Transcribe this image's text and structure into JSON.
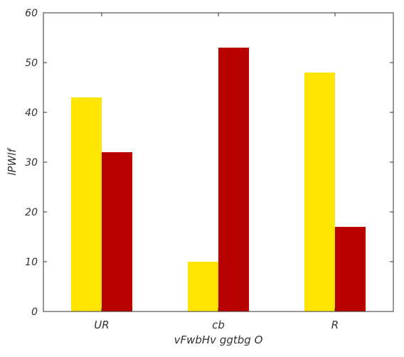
{
  "chart_data": {
    "type": "bar",
    "categories": [
      "UR",
      "cb",
      "R"
    ],
    "series": [
      {
        "values": [
          43,
          10,
          48
        ],
        "color": "#FFE600"
      },
      {
        "values": [
          32,
          53,
          17
        ],
        "color": "#B80000"
      }
    ],
    "xlabel": "vFwbHv ggtbg O",
    "ylabel": "lPWlf",
    "ylim": [
      0,
      60
    ],
    "yticks": [
      "0",
      "10",
      "20",
      "30",
      "40",
      "50",
      "60"
    ],
    "grid": false,
    "legend": "none"
  }
}
